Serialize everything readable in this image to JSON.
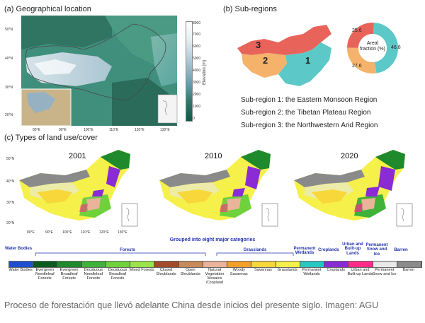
{
  "panel_a": {
    "title": "(a) Geographical location",
    "lat_labels": [
      "50°N",
      "40°N",
      "30°N",
      "20°N"
    ],
    "lon_labels": [
      "80°E",
      "90°E",
      "100°E",
      "110°E",
      "120°E",
      "130°E"
    ],
    "colorbar": {
      "label": "Elevation (m)",
      "ticks": [
        "8000",
        "7000",
        "6000",
        "5000",
        "4000",
        "3000",
        "2000",
        "1000",
        "0"
      ]
    }
  },
  "panel_b": {
    "title": "(b) Sub-regions",
    "region_numbers": [
      "1",
      "2",
      "3"
    ],
    "donut": {
      "center_label": "Areal fraction (%)",
      "values": [
        {
          "label": "46.8",
          "value": 46.8,
          "color": "#5cc8c8"
        },
        {
          "label": "27.6",
          "value": 27.6,
          "color": "#f5b26b"
        },
        {
          "label": "25.6",
          "value": 25.6,
          "color": "#e8645a"
        }
      ]
    },
    "regions": [
      "Sub-region 1: the Eastern Monsoon Region",
      "Sub-region 2: the Tibetan Plateau Region",
      "Sub-region 3: the Northwestern Arid Region"
    ]
  },
  "panel_c": {
    "title": "(c) Types of land use/cover",
    "years": [
      "2001",
      "2010",
      "2020"
    ],
    "lat_labels": [
      "50°N",
      "40°N",
      "30°N",
      "20°N"
    ],
    "lon_labels": [
      "80°E",
      "90°E",
      "100°E",
      "110°E",
      "120°E",
      "130°E"
    ],
    "grouped_title": "Grouped into eight major categories",
    "categories": [
      {
        "label": "Water Bodies"
      },
      {
        "label": "Forests"
      },
      {
        "label": "Grasslands"
      },
      {
        "label": "Permanent Wetlands"
      },
      {
        "label": "Croplands"
      },
      {
        "label": "Urban and Built-up Lands"
      },
      {
        "label": "Permanent Snow and Ice"
      },
      {
        "label": "Barren"
      }
    ],
    "classes": [
      {
        "label": "Water Bodies",
        "color": "#1f4fd1"
      },
      {
        "label": "Evergreen Needleleaf Forests",
        "color": "#0a5c1e"
      },
      {
        "label": "Evergreen Broadleaf Forests",
        "color": "#1e8a2c"
      },
      {
        "label": "Deciduous Needleleaf Forests",
        "color": "#3fb23a"
      },
      {
        "label": "Deciduous Broadleaf Forests",
        "color": "#6fd13c"
      },
      {
        "label": "Mixed Forests",
        "color": "#9ae34a"
      },
      {
        "label": "Closed Shrublands",
        "color": "#a24a2a"
      },
      {
        "label": "Open Shrublands",
        "color": "#c98a5a"
      },
      {
        "label": "Natural Vegetation Mosaics /Cropland",
        "color": "#e9b49a"
      },
      {
        "label": "Woody Savannas",
        "color": "#f3a02a"
      },
      {
        "label": "Savannas",
        "color": "#f7d73a"
      },
      {
        "label": "Grasslands",
        "color": "#f5f04a"
      },
      {
        "label": "Permanent Wetlands",
        "color": "#27c7c2"
      },
      {
        "label": "Croplands",
        "color": "#8a2bd6"
      },
      {
        "label": "Urban and Built-up Lands",
        "color": "#ff2a8a"
      },
      {
        "label": "Permanent Snow and Ice",
        "color": "#e8e8e8"
      },
      {
        "label": "Barren",
        "color": "#8a8a8a"
      }
    ]
  },
  "caption": "Proceso de forestación que llevó adelante China desde inicios del presente siglo. Imagen: AGU"
}
